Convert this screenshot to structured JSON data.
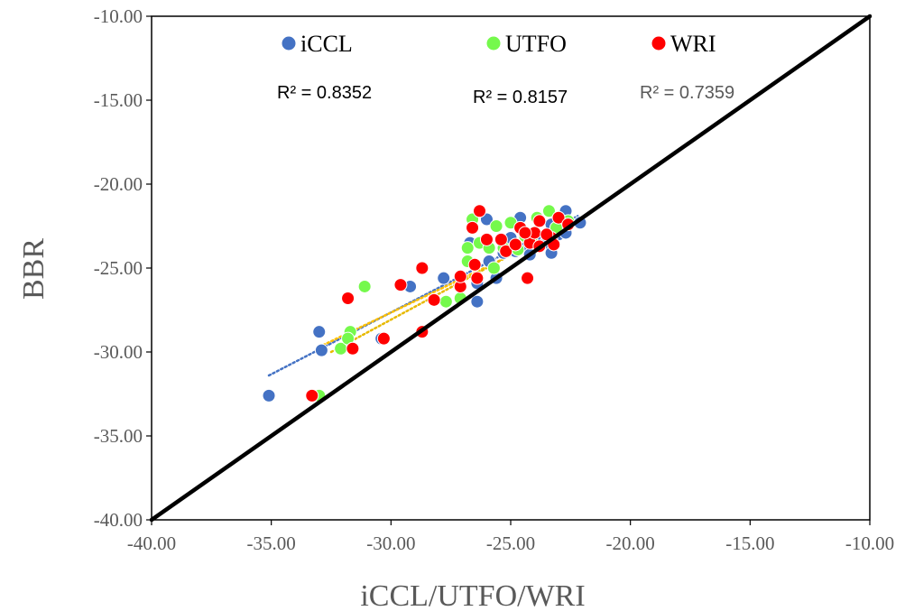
{
  "chart_data": {
    "type": "scatter",
    "title": "",
    "xlabel": "iCCL/UTFO/WRI",
    "ylabel": "BBR",
    "xlim": [
      -40,
      -10
    ],
    "ylim": [
      -40,
      -10
    ],
    "x_ticks": [
      "-40.00",
      "-35.00",
      "-30.00",
      "-25.00",
      "-20.00",
      "-15.00",
      "-10.00"
    ],
    "y_ticks": [
      "-40.00",
      "-35.00",
      "-30.00",
      "-25.00",
      "-20.00",
      "-15.00",
      "-10.00"
    ],
    "grid": false,
    "legend_position": "top",
    "reference_line": {
      "from": [
        -40,
        -40
      ],
      "to": [
        -10,
        -10
      ],
      "color": "#000000"
    },
    "series": [
      {
        "name": "iCCL",
        "color": "#4472C4",
        "r2_label": "R² = 0.8352",
        "r2_color": "#000000",
        "trendline_color": "#4472C4",
        "trendline": {
          "x": [
            -35.1,
            -22.2
          ],
          "y": [
            -31.4,
            -21.9
          ]
        },
        "points": [
          [
            -35.1,
            -32.6
          ],
          [
            -33.0,
            -28.8
          ],
          [
            -32.9,
            -29.9
          ],
          [
            -30.4,
            -29.2
          ],
          [
            -29.2,
            -26.1
          ],
          [
            -27.8,
            -25.6
          ],
          [
            -26.4,
            -27.0
          ],
          [
            -26.4,
            -25.9
          ],
          [
            -25.9,
            -24.6
          ],
          [
            -25.6,
            -25.6
          ],
          [
            -25.3,
            -24.1
          ],
          [
            -26.0,
            -23.3
          ],
          [
            -26.7,
            -23.5
          ],
          [
            -26.0,
            -22.1
          ],
          [
            -24.6,
            -22.0
          ],
          [
            -24.3,
            -23.7
          ],
          [
            -24.0,
            -23.2
          ],
          [
            -24.2,
            -24.2
          ],
          [
            -23.5,
            -23.5
          ],
          [
            -23.3,
            -24.1
          ],
          [
            -23.3,
            -22.4
          ],
          [
            -23.0,
            -23.0
          ],
          [
            -22.7,
            -22.9
          ],
          [
            -22.7,
            -21.6
          ],
          [
            -22.1,
            -22.3
          ],
          [
            -25.0,
            -23.2
          ],
          [
            -24.8,
            -24.0
          ]
        ]
      },
      {
        "name": "UTFO",
        "color": "#75F94C",
        "r2_label": "R² = 0.8157",
        "r2_color": "#000000",
        "trendline_color": "#FFC000",
        "trendline": {
          "x": [
            -33.0,
            -22.3
          ],
          "y": [
            -29.7,
            -22.4
          ]
        },
        "points": [
          [
            -33.0,
            -32.6
          ],
          [
            -32.1,
            -29.8
          ],
          [
            -31.7,
            -28.8
          ],
          [
            -31.8,
            -29.2
          ],
          [
            -31.1,
            -26.1
          ],
          [
            -27.7,
            -27.0
          ],
          [
            -27.1,
            -26.8
          ],
          [
            -26.8,
            -24.6
          ],
          [
            -26.6,
            -22.1
          ],
          [
            -26.8,
            -23.8
          ],
          [
            -26.3,
            -23.5
          ],
          [
            -25.9,
            -23.8
          ],
          [
            -25.7,
            -25.0
          ],
          [
            -25.6,
            -22.5
          ],
          [
            -25.3,
            -23.8
          ],
          [
            -25.0,
            -22.3
          ],
          [
            -24.4,
            -23.1
          ],
          [
            -23.9,
            -22.0
          ],
          [
            -23.4,
            -21.6
          ],
          [
            -23.1,
            -22.6
          ],
          [
            -22.6,
            -22.2
          ],
          [
            -24.7,
            -23.9
          ],
          [
            -24.1,
            -23.5
          ]
        ]
      },
      {
        "name": "WRI",
        "color": "#FF0000",
        "r2_label": "R² = 0.7359",
        "r2_color": "#595959",
        "trendline_color": "#E7B900",
        "trendline": {
          "x": [
            -32.5,
            -22.5
          ],
          "y": [
            -30.0,
            -22.3
          ]
        },
        "points": [
          [
            -33.3,
            -32.6
          ],
          [
            -31.8,
            -26.8
          ],
          [
            -31.6,
            -29.8
          ],
          [
            -30.3,
            -29.2
          ],
          [
            -29.6,
            -26.0
          ],
          [
            -28.7,
            -25.0
          ],
          [
            -28.7,
            -28.8
          ],
          [
            -28.2,
            -26.9
          ],
          [
            -27.1,
            -26.1
          ],
          [
            -27.1,
            -25.5
          ],
          [
            -26.6,
            -22.6
          ],
          [
            -26.5,
            -24.8
          ],
          [
            -26.4,
            -25.6
          ],
          [
            -26.3,
            -21.6
          ],
          [
            -26.0,
            -23.3
          ],
          [
            -25.4,
            -23.3
          ],
          [
            -25.2,
            -24.0
          ],
          [
            -24.8,
            -23.6
          ],
          [
            -24.6,
            -22.6
          ],
          [
            -24.3,
            -25.6
          ],
          [
            -24.2,
            -23.5
          ],
          [
            -24.0,
            -22.9
          ],
          [
            -23.8,
            -22.2
          ],
          [
            -23.8,
            -23.7
          ],
          [
            -23.3,
            -23.2
          ],
          [
            -23.2,
            -23.6
          ],
          [
            -23.0,
            -22.0
          ],
          [
            -22.6,
            -22.4
          ],
          [
            -24.4,
            -22.9
          ],
          [
            -23.5,
            -23.0
          ]
        ]
      }
    ]
  }
}
